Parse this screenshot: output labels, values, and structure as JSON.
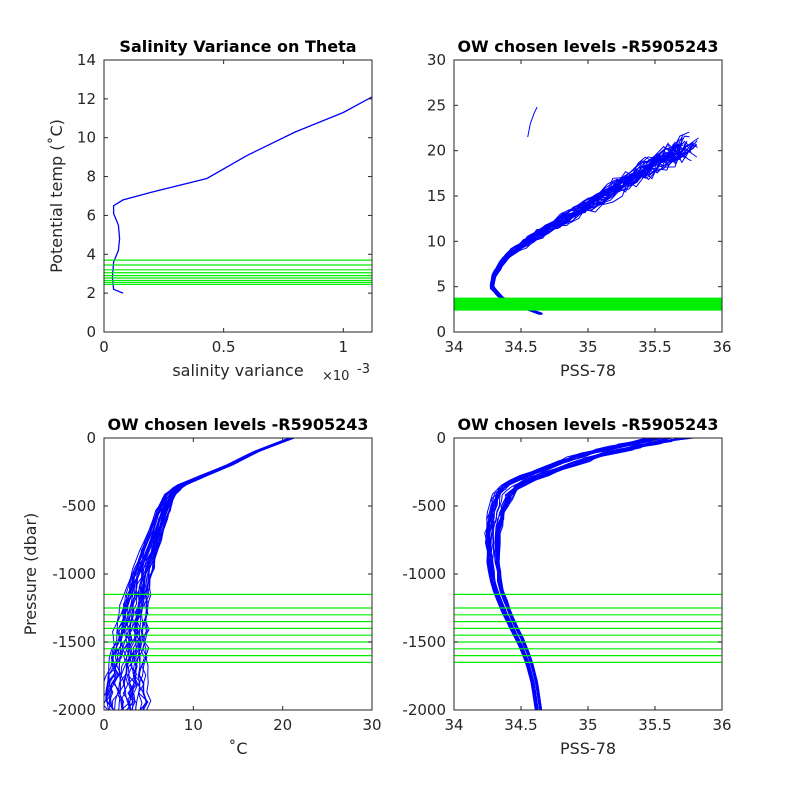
{
  "colors": {
    "profile": "#0000ff",
    "levels": "#00ee00",
    "axis": "#262626",
    "background": "#ffffff"
  },
  "chart_data": [
    {
      "type": "line",
      "title": "Salinity Variance on Theta",
      "xlabel": "salinity variance",
      "x_exponent_label": "×10",
      "x_exponent": "-3",
      "ylabel": "Potential temp (˚C)",
      "xlim": [
        0,
        1.12
      ],
      "ylim": [
        0,
        14
      ],
      "xticks": [
        0,
        0.5,
        1
      ],
      "xtick_labels": [
        "0",
        "0.5",
        "1"
      ],
      "yticks": [
        0,
        2,
        4,
        6,
        8,
        10,
        12,
        14
      ],
      "ytick_labels": [
        "0",
        "2",
        "4",
        "6",
        "8",
        "10",
        "12",
        "14"
      ],
      "grid": false,
      "series": [
        {
          "color": "#0000ff",
          "x": [
            0.08,
            0.04,
            0.035,
            0.04,
            0.06,
            0.065,
            0.06,
            0.04,
            0.04,
            0.08,
            0.2,
            0.43,
            0.6,
            0.8,
            1.0,
            1.12
          ],
          "y": [
            2.0,
            2.2,
            2.8,
            3.6,
            4.2,
            4.8,
            5.5,
            6.1,
            6.5,
            6.8,
            7.2,
            7.9,
            9.1,
            10.3,
            11.3,
            12.1
          ]
        }
      ],
      "reference_levels": {
        "axis": "y",
        "color": "#00ee00",
        "values": [
          2.45,
          2.55,
          2.65,
          2.78,
          2.9,
          3.05,
          3.2,
          3.45,
          3.7
        ]
      }
    },
    {
      "type": "line",
      "title": "OW chosen levels -R5905243",
      "xlabel": "PSS-78",
      "ylabel": "",
      "xlim": [
        34,
        36
      ],
      "ylim": [
        0,
        30
      ],
      "xticks": [
        34,
        34.5,
        35,
        35.5,
        36
      ],
      "xtick_labels": [
        "34",
        "34.5",
        "35",
        "35.5",
        "36"
      ],
      "yticks": [
        0,
        5,
        10,
        15,
        20,
        25,
        30
      ],
      "ytick_labels": [
        "0",
        "5",
        "10",
        "15",
        "20",
        "25",
        "30"
      ],
      "grid": false,
      "profile_count": 34,
      "series": [
        {
          "color": "#0000ff",
          "x": [
            34.65,
            34.5,
            34.35,
            34.28,
            34.3,
            34.36,
            34.45,
            34.6,
            34.8,
            35.0,
            35.2,
            35.4,
            35.6,
            35.75
          ],
          "y": [
            2.0,
            2.8,
            3.8,
            5.0,
            6.3,
            7.7,
            9.0,
            10.5,
            12.2,
            14.0,
            15.8,
            17.6,
            19.3,
            20.5
          ]
        }
      ],
      "reference_levels": {
        "axis": "y",
        "color": "#00ee00",
        "values": [
          2.45,
          2.55,
          2.65,
          2.78,
          2.9,
          3.05,
          3.2,
          3.45,
          3.7
        ]
      }
    },
    {
      "type": "line",
      "title": "OW chosen levels -R5905243",
      "xlabel": "˚C",
      "ylabel": "Pressure (dbar)",
      "xlim": [
        0,
        30
      ],
      "ylim": [
        -2000,
        0
      ],
      "xticks": [
        0,
        10,
        20,
        30
      ],
      "xtick_labels": [
        "0",
        "10",
        "20",
        "30"
      ],
      "yticks": [
        -2000,
        -1500,
        -1000,
        -500,
        0
      ],
      "ytick_labels": [
        "-2000",
        "-1500",
        "-1000",
        "-500",
        "0"
      ],
      "grid": false,
      "profile_count": 34,
      "series": [
        {
          "color": "#0000ff",
          "x": [
            21.0,
            17.0,
            14.0,
            11.0,
            8.5,
            7.3,
            6.5,
            5.2,
            4.2,
            3.5,
            3.0,
            2.6,
            2.3,
            2.1
          ],
          "y": [
            0,
            -100,
            -200,
            -280,
            -350,
            -420,
            -550,
            -800,
            -1000,
            -1200,
            -1400,
            -1600,
            -1800,
            -2000
          ]
        }
      ],
      "reference_levels": {
        "axis": "y",
        "color": "#00ee00",
        "values": [
          -1150,
          -1250,
          -1300,
          -1350,
          -1400,
          -1450,
          -1500,
          -1550,
          -1600,
          -1650
        ]
      }
    },
    {
      "type": "line",
      "title": "OW chosen levels -R5905243",
      "xlabel": "PSS-78",
      "ylabel": "",
      "xlim": [
        34,
        36
      ],
      "ylim": [
        -2000,
        0
      ],
      "xticks": [
        34,
        34.5,
        35,
        35.5,
        36
      ],
      "xtick_labels": [
        "34",
        "34.5",
        "35",
        "35.5",
        "36"
      ],
      "yticks": [
        -2000,
        -1500,
        -1000,
        -500,
        0
      ],
      "ytick_labels": [
        "-2000",
        "-1500",
        "-1000",
        "-500",
        "0"
      ],
      "grid": false,
      "profile_count": 34,
      "series": [
        {
          "color": "#0000ff",
          "x": [
            35.6,
            35.3,
            35.0,
            34.75,
            34.45,
            34.36,
            34.32,
            34.29,
            34.29,
            34.32,
            34.4,
            34.5,
            34.56,
            34.6,
            34.63
          ],
          "y": [
            0,
            -60,
            -130,
            -220,
            -330,
            -420,
            -550,
            -700,
            -900,
            -1100,
            -1300,
            -1500,
            -1650,
            -1800,
            -2000
          ]
        }
      ],
      "reference_levels": {
        "axis": "y",
        "color": "#00ee00",
        "values": [
          -1150,
          -1250,
          -1300,
          -1350,
          -1400,
          -1450,
          -1500,
          -1550,
          -1600,
          -1650
        ]
      }
    }
  ]
}
